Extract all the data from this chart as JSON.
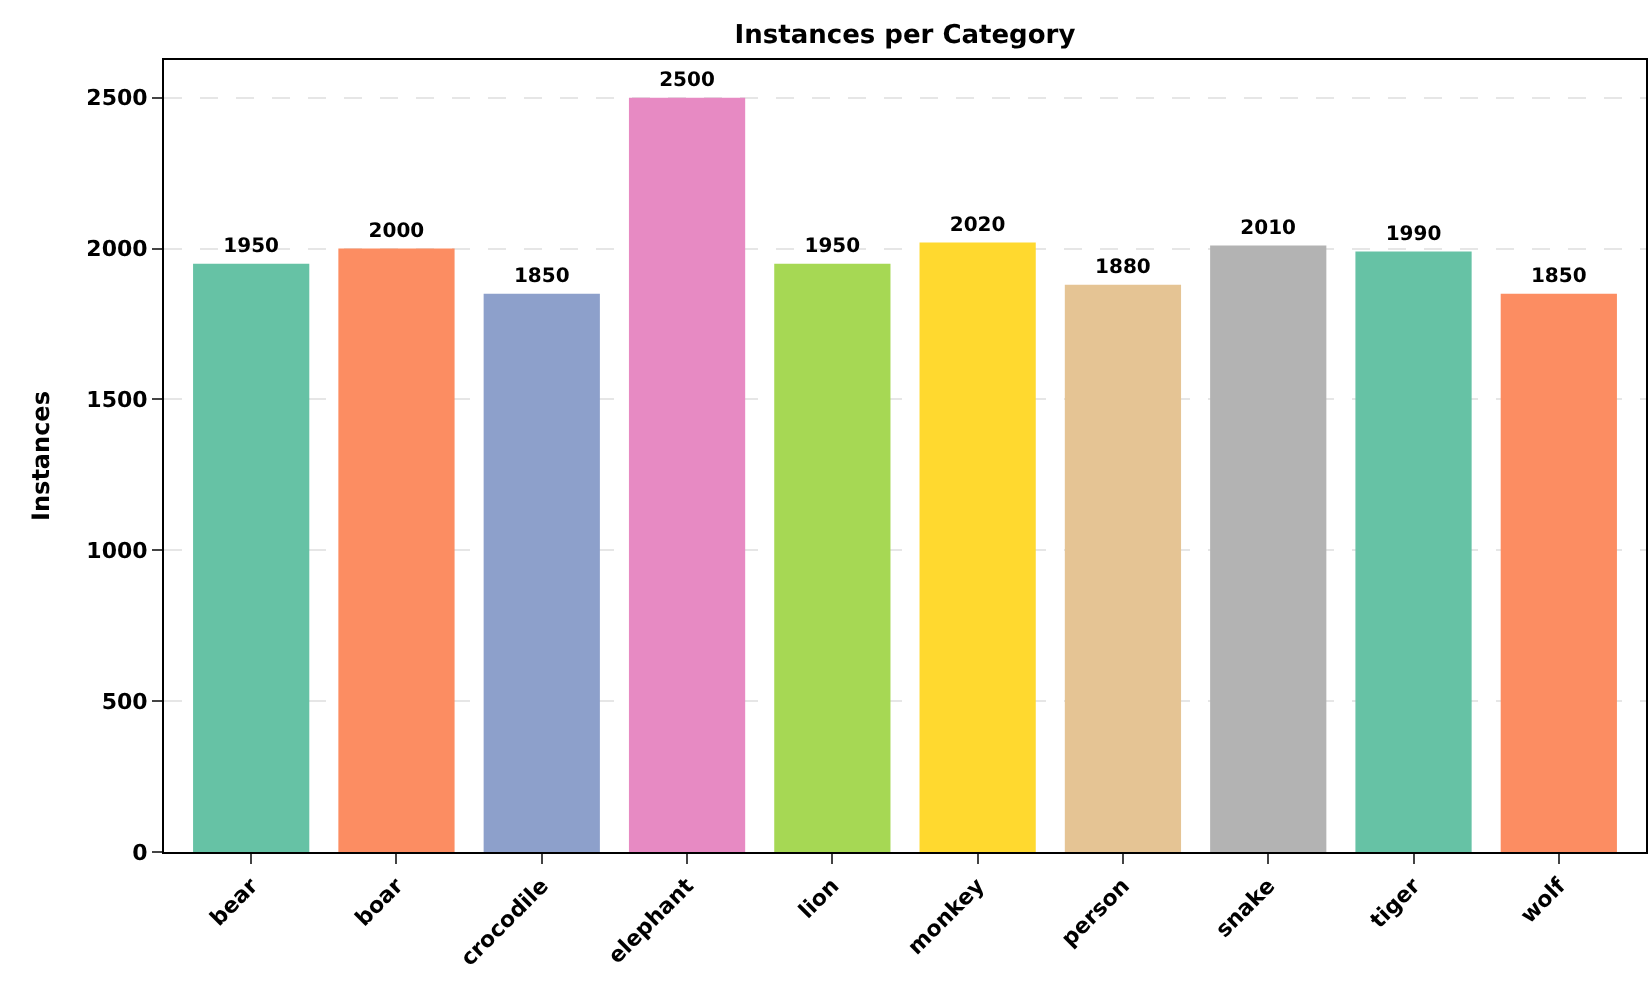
{
  "chart_data": {
    "type": "bar",
    "title": "Instances per Category",
    "ylabel": "Instances",
    "categories": [
      "bear",
      "boar",
      "crocodile",
      "elephant",
      "lion",
      "monkey",
      "person",
      "snake",
      "tiger",
      "wolf"
    ],
    "values": [
      1950,
      2000,
      1850,
      2500,
      1950,
      2020,
      1880,
      2010,
      1990,
      1850
    ],
    "colors": [
      "#66c2a5",
      "#fc8d62",
      "#8da0cb",
      "#e78ac3",
      "#a6d854",
      "#ffd92f",
      "#e5c494",
      "#b3b3b3",
      "#66c2a5",
      "#fc8d62"
    ],
    "ylim": [
      0,
      2625
    ],
    "yticks": [
      0,
      500,
      1000,
      1500,
      2000,
      2500
    ],
    "grid": "y",
    "data_labels": true,
    "legend": false
  }
}
